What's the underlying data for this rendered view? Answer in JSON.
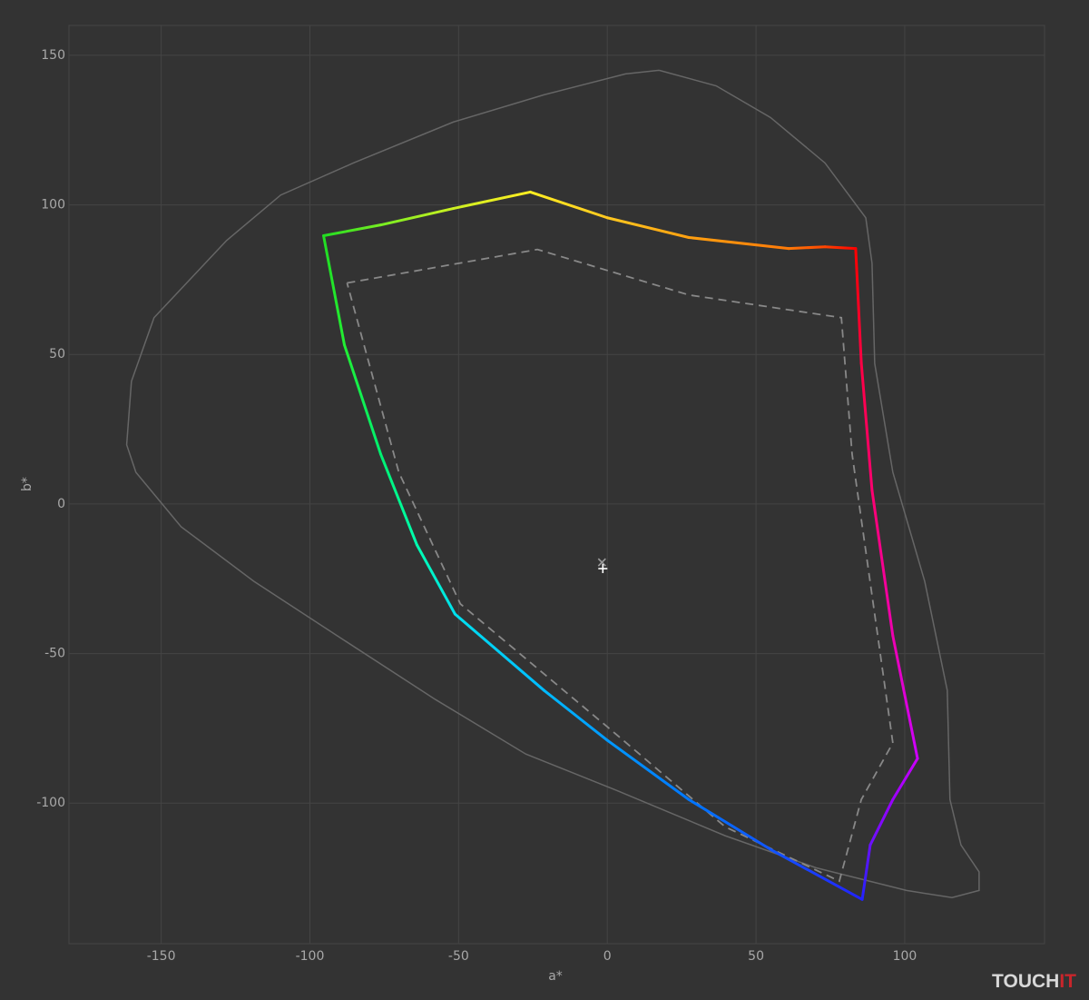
{
  "chart_data": {
    "type": "line",
    "x_label": "a*",
    "y_label": "b*",
    "xlim": [
      -181,
      147
    ],
    "ylim": [
      -147,
      160
    ],
    "xticks": [
      -150,
      -100,
      -50,
      0,
      50,
      100
    ],
    "yticks": [
      -100,
      -50,
      0,
      50,
      100,
      150
    ],
    "grid": true,
    "series": [
      {
        "color": "#666666",
        "x": [
          17.4,
          36.6,
          54.9,
          73.2,
          86.9,
          89,
          89.9,
          96,
          106.7,
          114.3,
          115.2,
          118.9,
          125,
          125,
          115.9,
          100.6,
          70.1,
          39.6,
          3,
          -27.4,
          -57.9,
          -88.4,
          -118.9,
          -143.3,
          -158.5,
          -161.6,
          -160,
          -152.4,
          -128,
          -109.8,
          -85.4,
          -51.8,
          -21.3,
          6.1,
          17.4
        ],
        "values": [
          145,
          139.8,
          129.2,
          114,
          95.7,
          80.5,
          47,
          10.6,
          -25.8,
          -62.3,
          -98.8,
          -114,
          -123,
          -129.2,
          -131.6,
          -129.2,
          -121.6,
          -110.9,
          -95.7,
          -83.6,
          -65.3,
          -45.6,
          -25.8,
          -7.6,
          10.6,
          19.8,
          41,
          62.3,
          88.1,
          103.3,
          114,
          127.7,
          136.8,
          143.8,
          145
        ]
      },
      {
        "color": "#888888",
        "dash": true,
        "x": [
          -87.5,
          -23.5,
          27.4,
          78.7,
          82.3,
          96,
          85.4,
          78,
          39.6,
          0,
          -49.4,
          -70.1,
          -87.5
        ],
        "values": [
          73.9,
          85.1,
          69.9,
          62.3,
          16.7,
          -79.9,
          -98.8,
          -126.1,
          -107.9,
          -74.5,
          -33.4,
          10.6,
          73.9
        ]
      },
      {
        "colors": [
          "#22dd22",
          "#77ee22",
          "#ccf022",
          "#ffee22",
          "#ffc820",
          "#ffa010",
          "#ff7a08",
          "#ff4400",
          "#ff0000",
          "#ff0044",
          "#ff0070",
          "#ee00b0",
          "#cc00ff",
          "#9a00ff",
          "#6a10ff",
          "#2222ff",
          "#1155ff",
          "#0077ff",
          "#0099ff",
          "#00bbff",
          "#00e0ee",
          "#00ffb0",
          "#00f070",
          "#22ee33",
          "#22dd22"
        ],
        "x": [
          -95.4,
          -76.2,
          -51.8,
          -25.9,
          0,
          27.4,
          61,
          73.2,
          83.5,
          85.4,
          89,
          96,
          104.3,
          96,
          88.4,
          85.7,
          54.9,
          27.4,
          0,
          -21.3,
          -51.2,
          -64,
          -76.2,
          -88.4,
          -95.4
        ],
        "values": [
          89.7,
          93.3,
          98.8,
          104.3,
          95.7,
          89.1,
          85.4,
          86,
          85.4,
          47.1,
          4.6,
          -44.1,
          -85.1,
          -98.8,
          -114,
          -132.2,
          -115.5,
          -98.8,
          -79,
          -62.3,
          -36.8,
          -13.7,
          16.7,
          53.2,
          89.7
        ]
      },
      {
        "color": "#999999",
        "marker": "cross",
        "x": [
          -1.8
        ],
        "values": [
          -19.5
        ]
      },
      {
        "color": "#ffffff",
        "marker": "plus",
        "x": [
          -1.5
        ],
        "values": [
          -21.6
        ]
      }
    ]
  },
  "watermark": {
    "part1": "TOUCH",
    "part2": "IT"
  }
}
